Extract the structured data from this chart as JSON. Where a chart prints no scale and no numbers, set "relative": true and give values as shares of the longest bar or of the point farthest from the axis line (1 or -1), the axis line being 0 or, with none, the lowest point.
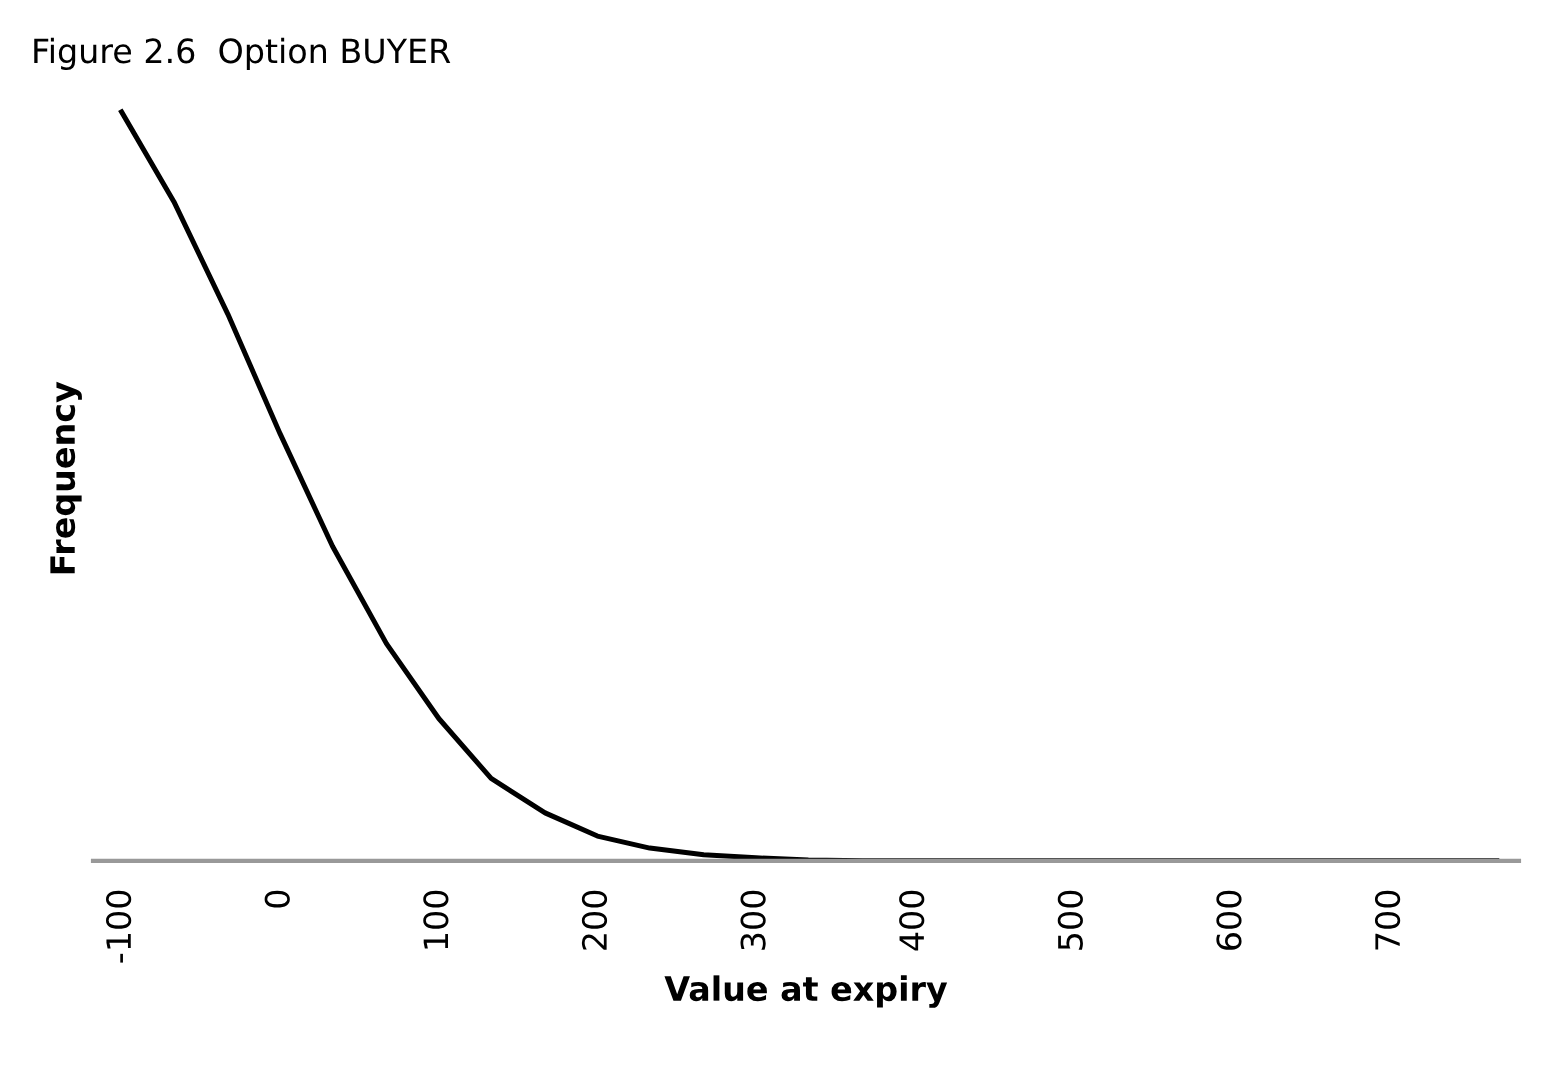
{
  "chart_data": {
    "type": "line",
    "title": "Figure 2.6  Option BUYER",
    "xlabel": "Value at expiry",
    "ylabel": "Frequency",
    "relative": true,
    "x": [
      -100,
      -67,
      -33,
      0,
      33,
      67,
      100,
      133,
      167,
      200,
      233,
      267,
      300,
      333,
      367,
      400,
      433,
      467,
      500,
      533,
      567,
      600,
      633,
      667,
      700,
      733,
      767
    ],
    "series": [
      {
        "color": "#000000",
        "values": [
          1.0,
          0.88,
          0.73,
          0.57,
          0.42,
          0.29,
          0.19,
          0.11,
          0.064,
          0.033,
          0.017,
          0.008,
          0.004,
          0.001,
          0,
          0,
          0,
          0,
          0,
          0,
          0,
          0,
          0,
          0,
          0,
          0,
          0
        ]
      }
    ],
    "xlim": [
      -118,
      781
    ],
    "xticks": [
      -100,
      0,
      100,
      200,
      300,
      400,
      500,
      600,
      700
    ],
    "grid": false
  }
}
